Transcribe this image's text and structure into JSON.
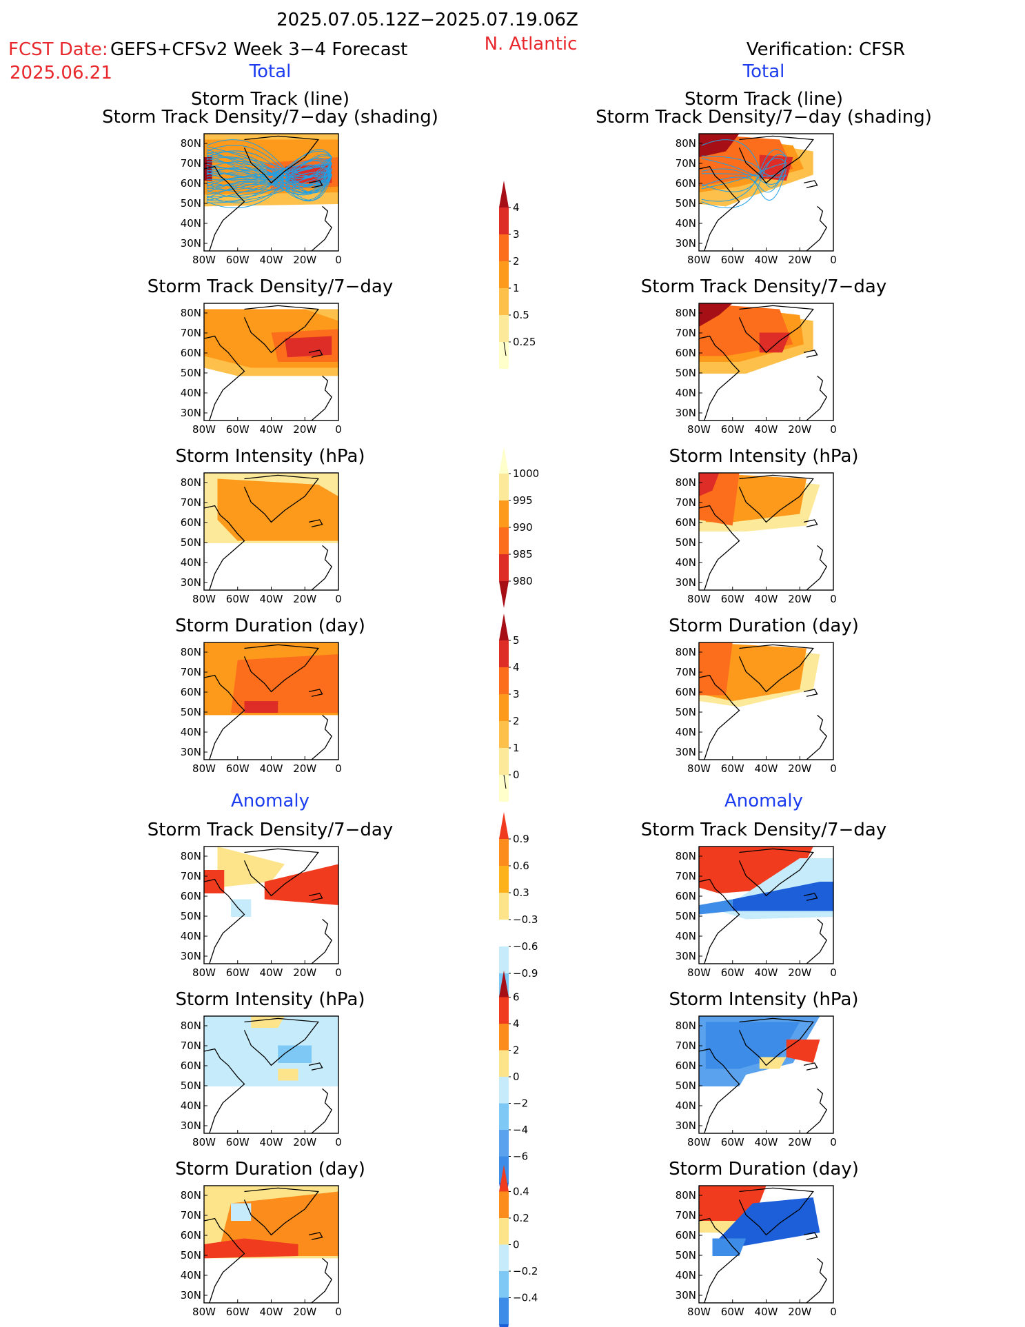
{
  "header": {
    "period": "2025.07.05.12Z−2025.07.19.06Z",
    "fcst_label": "FCST Date:",
    "model": "GEFS+CFSv2 Week 3−4 Forecast",
    "fcst_date": "2025.06.21",
    "region": "N. Atlantic",
    "verification": "Verification: CFSR"
  },
  "sections": {
    "total": "Total",
    "anomaly": "Anomaly"
  },
  "axes": {
    "lat_ticks": [
      "80N",
      "70N",
      "60N",
      "50N",
      "40N",
      "30N"
    ],
    "lon_ticks": [
      "80W",
      "60W",
      "40W",
      "20W",
      "0"
    ]
  },
  "panels": [
    {
      "title": "Storm Track (line)",
      "title2": "Storm Track Density/7−day (shading)"
    },
    {
      "title": "Storm Track Density/7−day"
    },
    {
      "title": "Storm Intensity (hPa)"
    },
    {
      "title": "Storm Duration (day)"
    },
    {
      "title": "Storm Track Density/7−day"
    },
    {
      "title": "Storm Intensity (hPa)"
    },
    {
      "title": "Storm Duration (day)"
    }
  ],
  "colorbars": [
    {
      "labels": [
        "4",
        "3",
        "2",
        "1",
        "0.5",
        "0.25"
      ],
      "colors": [
        "#a50f15",
        "#de2d26",
        "#fc6e1c",
        "#fd9a1c",
        "#fdc04a",
        "#fde99a",
        "#ffffcc"
      ]
    },
    {
      "labels": [
        "1000",
        "995",
        "990",
        "985",
        "980"
      ],
      "colors": [
        "#ffffcc",
        "#fde99a",
        "#fd9a1c",
        "#fc6e1c",
        "#de2d26",
        "#a50f15"
      ]
    },
    {
      "labels": [
        "5",
        "4",
        "3",
        "2",
        "1",
        "0"
      ],
      "colors": [
        "#a50f15",
        "#de2d26",
        "#fc6e1c",
        "#fd9a1c",
        "#fdc04a",
        "#fde99a",
        "#ffffcc"
      ]
    },
    {
      "labels": [
        "0.9",
        "0.6",
        "0.3",
        "−0.3",
        "−0.6",
        "−0.9"
      ],
      "colors": [
        "#f03b1e",
        "#fc8d1c",
        "#fdb21c",
        "#fde48a",
        "#ffffff",
        "#c6ecfb",
        "#7ec8f5",
        "#3d8de8",
        "#1c5fd8"
      ]
    },
    {
      "labels": [
        "6",
        "4",
        "2",
        "0",
        "−2",
        "−4",
        "−6"
      ],
      "colors": [
        "#a50f15",
        "#f03b1e",
        "#fc8d1c",
        "#fde48a",
        "#c6ecfb",
        "#7ec8f5",
        "#5aa2ee",
        "#3d8de8",
        "#1c5fd8"
      ]
    },
    {
      "labels": [
        "0.4",
        "0.2",
        "0",
        "−0.2",
        "−0.4"
      ],
      "colors": [
        "#f03b1e",
        "#fc8d1c",
        "#fde48a",
        "#c6ecfb",
        "#7ec8f5",
        "#3d8de8",
        "#1c5fd8"
      ]
    }
  ],
  "colors": {
    "red_text": "#e8282c",
    "blue_text": "#1c3cf0",
    "storm_track_line": "#1ea0e6"
  }
}
